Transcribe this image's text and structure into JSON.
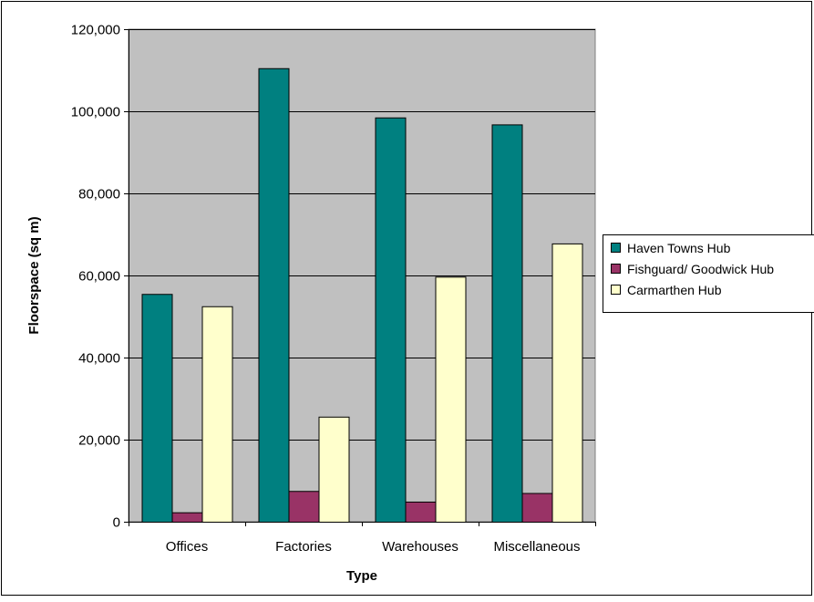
{
  "chart_data": {
    "type": "bar",
    "title": "",
    "xlabel": "Type",
    "ylabel": "Floorspace (sq m)",
    "categories": [
      "Offices",
      "Factories",
      "Warehouses",
      "Miscellaneous"
    ],
    "series": [
      {
        "name": "Haven Towns Hub",
        "color": "#008080",
        "values": [
          55500,
          110500,
          98500,
          96800
        ]
      },
      {
        "name": "Fishguard/ Goodwick Hub",
        "color": "#993366",
        "values": [
          2300,
          7500,
          4900,
          7000
        ]
      },
      {
        "name": "Carmarthen Hub",
        "color": "#FFFFCC",
        "values": [
          52500,
          25600,
          59700,
          67800
        ]
      }
    ],
    "ylim": [
      0,
      120000
    ],
    "yticks": [
      0,
      20000,
      40000,
      60000,
      80000,
      100000,
      120000
    ],
    "ytick_labels": [
      "0",
      "20,000",
      "40,000",
      "60,000",
      "80,000",
      "100,000",
      "120,000"
    ],
    "grid": true,
    "plot_background": "#C0C0C0",
    "legend_position": "right"
  }
}
